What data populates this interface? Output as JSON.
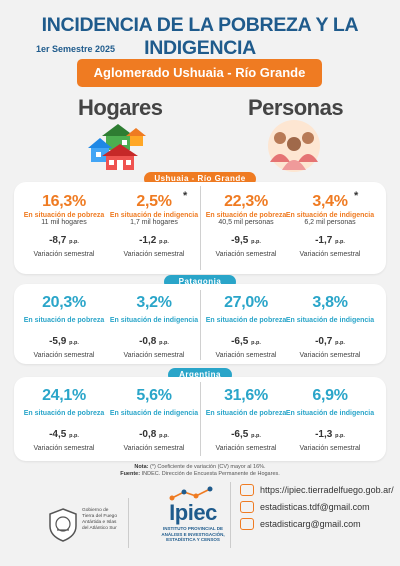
{
  "title": "INCIDENCIA DE LA POBREZA Y LA INDIGENCIA",
  "period": "1er Semestre 2025",
  "banner": "Aglomerado Ushuaia - Río Grande",
  "columns": {
    "hogares": "Hogares",
    "personas": "Personas"
  },
  "sections": [
    {
      "name": "Ushuaia - Río Grande",
      "cells": [
        {
          "value": "16,3%",
          "label": "En situación de pobreza",
          "sub": "11  mil hogares",
          "var": "-8,7",
          "unit": "p.p.",
          "vlabel": "Variación semestral"
        },
        {
          "value": "2,5%",
          "label": "En situación de indigencia",
          "sub": "1,7  mil hogares",
          "var": "-1,2",
          "unit": "p.p.",
          "vlabel": "Variación semestral",
          "star": "*"
        },
        {
          "value": "22,3%",
          "label": "En situación de pobreza",
          "sub": "40,5 mil personas",
          "var": "-9,5",
          "unit": "p.p.",
          "vlabel": "Variación semestral"
        },
        {
          "value": "3,4%",
          "label": "En situación de indigencia",
          "sub": "6,2  mil personas",
          "var": "-1,7",
          "unit": "p.p.",
          "vlabel": "Variación semestral",
          "star": "*"
        }
      ]
    },
    {
      "name": "Patagonia",
      "cells": [
        {
          "value": "20,3%",
          "label": "En situación de pobreza",
          "var": "-5,9",
          "unit": "p.p.",
          "vlabel": "Variación semestral"
        },
        {
          "value": "3,2%",
          "label": "En situación de indigencia",
          "var": "-0,8",
          "unit": "p.p.",
          "vlabel": "Variación semestral"
        },
        {
          "value": "27,0%",
          "label": "En situación de pobreza",
          "var": "-6,5",
          "unit": "p.p.",
          "vlabel": "Variación semestral"
        },
        {
          "value": "3,8%",
          "label": "En situación de indigencia",
          "var": "-0,7",
          "unit": "p.p.",
          "vlabel": "Variación semestral"
        }
      ]
    },
    {
      "name": "Argentina",
      "cells": [
        {
          "value": "24,1%",
          "label": "En situación de pobreza",
          "var": "-4,5",
          "unit": "p.p.",
          "vlabel": "Variación semestral"
        },
        {
          "value": "5,6%",
          "label": "En situación de indigencia",
          "var": "-0,8",
          "unit": "p.p.",
          "vlabel": "Variación semestral"
        },
        {
          "value": "31,6%",
          "label": "En situación de pobreza",
          "var": "-6,5",
          "unit": "p.p.",
          "vlabel": "Variación semestral"
        },
        {
          "value": "6,9%",
          "label": "En situación de indigencia",
          "var": "-1,3",
          "unit": "p.p.",
          "vlabel": "Variación semestral"
        }
      ]
    }
  ],
  "note": {
    "nota_label": "Nota:",
    "nota_text": " (*) Coeficiente de variación (CV) mayor al 16%.",
    "fuente_label": "Fuente:",
    "fuente_text": " INDEC. Dirección de Encuesta Permanente de Hogares."
  },
  "footer": {
    "gov_text": [
      "Gobierno de",
      "Tierra del Fuego",
      "Antártida e Islas",
      "del Atlántico Sur"
    ],
    "ipiec_name": "Ipiec",
    "ipiec_sub": [
      "INSTITUTO PROVINCIAL DE",
      "ANÁLISIS E INVESTIGACIÓN,",
      "ESTADÍSTICA Y CENSOS"
    ],
    "contacts": [
      {
        "icon": "web-icon",
        "text": "https://ipiec.tierradelfuego.gob.ar/"
      },
      {
        "icon": "facebook-icon",
        "text": "estadisticas.tdf@gmail.com"
      },
      {
        "icon": "email-icon",
        "text": "estadisticarg@gmail.com"
      }
    ]
  },
  "colors": {
    "orange": "#ef7b22",
    "teal": "#2aa5c9",
    "navy": "#1f5b8c"
  }
}
